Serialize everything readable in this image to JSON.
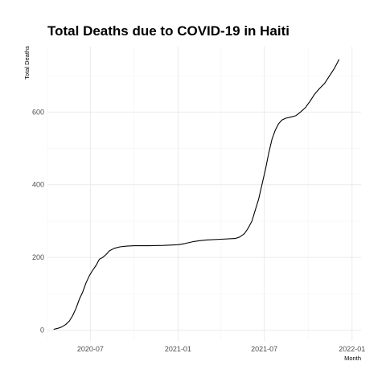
{
  "chart_data": {
    "type": "line",
    "title": "Total Deaths due to COVID-19 in Haiti",
    "xlabel": "Month",
    "ylabel": "Total Deaths",
    "x_ticks": [
      "2020-07",
      "2021-01",
      "2021-07",
      "2022-01"
    ],
    "y_ticks": [
      0,
      200,
      400,
      600
    ],
    "xlim": [
      "2020-04-02",
      "2022-01-20"
    ],
    "ylim": [
      -30,
      780
    ],
    "grid": true,
    "series": [
      {
        "x": [
          "2020-04-15",
          "2020-04-22",
          "2020-05-01",
          "2020-05-10",
          "2020-05-18",
          "2020-05-25",
          "2020-06-01",
          "2020-06-08",
          "2020-06-15",
          "2020-06-22",
          "2020-06-29",
          "2020-07-06",
          "2020-07-13",
          "2020-07-20",
          "2020-07-27",
          "2020-08-03",
          "2020-08-10",
          "2020-08-20",
          "2020-09-01",
          "2020-09-15",
          "2020-10-01",
          "2020-11-01",
          "2020-12-01",
          "2021-01-01",
          "2021-01-15",
          "2021-02-01",
          "2021-02-15",
          "2021-03-01",
          "2021-04-01",
          "2021-05-01",
          "2021-05-10",
          "2021-05-20",
          "2021-05-28",
          "2021-06-05",
          "2021-06-12",
          "2021-06-19",
          "2021-06-26",
          "2021-07-03",
          "2021-07-10",
          "2021-07-17",
          "2021-07-24",
          "2021-07-31",
          "2021-08-07",
          "2021-08-15",
          "2021-08-25",
          "2021-09-05",
          "2021-09-15",
          "2021-09-25",
          "2021-10-05",
          "2021-10-15",
          "2021-10-25",
          "2021-11-05",
          "2021-11-15",
          "2021-11-25",
          "2021-12-05"
        ],
        "y": [
          2,
          4,
          8,
          15,
          25,
          40,
          60,
          85,
          105,
          130,
          150,
          165,
          178,
          195,
          200,
          208,
          218,
          225,
          229,
          231,
          232,
          232,
          233,
          235,
          238,
          243,
          246,
          248,
          250,
          252,
          256,
          265,
          280,
          300,
          330,
          360,
          400,
          440,
          485,
          525,
          550,
          568,
          578,
          583,
          586,
          590,
          600,
          612,
          630,
          650,
          665,
          680,
          700,
          720,
          745
        ]
      }
    ]
  }
}
